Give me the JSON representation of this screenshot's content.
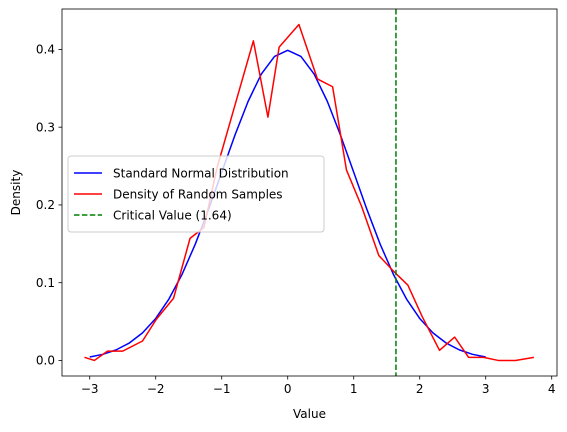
{
  "chart_data": {
    "type": "line",
    "title": "",
    "xlabel": "Value",
    "ylabel": "Density",
    "xlim": [
      -3.42,
      4.08
    ],
    "ylim": [
      -0.02,
      0.452
    ],
    "xticks": [
      -3,
      -2,
      -1,
      0,
      1,
      2,
      3,
      4
    ],
    "xtick_labels": [
      "−3",
      "−2",
      "−1",
      "0",
      "1",
      "2",
      "3",
      "4"
    ],
    "yticks": [
      0.0,
      0.1,
      0.2,
      0.3,
      0.4
    ],
    "ytick_labels": [
      "0.0",
      "0.1",
      "0.2",
      "0.3",
      "0.4"
    ],
    "grid": false,
    "legend_position": "center-left",
    "series": [
      {
        "name": "Standard Normal Distribution",
        "color": "#0000ff",
        "style": "solid",
        "x": [
          -3.0,
          -2.8,
          -2.6,
          -2.4,
          -2.2,
          -2.0,
          -1.8,
          -1.6,
          -1.4,
          -1.2,
          -1.0,
          -0.8,
          -0.6,
          -0.4,
          -0.2,
          0.0,
          0.2,
          0.4,
          0.6,
          0.8,
          1.0,
          1.2,
          1.4,
          1.6,
          1.8,
          2.0,
          2.2,
          2.4,
          2.6,
          2.8,
          3.0
        ],
        "y": [
          0.0044,
          0.0079,
          0.0136,
          0.0224,
          0.0355,
          0.054,
          0.079,
          0.1109,
          0.1497,
          0.1942,
          0.242,
          0.2897,
          0.3332,
          0.3683,
          0.391,
          0.3989,
          0.391,
          0.3683,
          0.3332,
          0.2897,
          0.242,
          0.1942,
          0.1497,
          0.1109,
          0.079,
          0.054,
          0.0355,
          0.0224,
          0.0136,
          0.0079,
          0.0044
        ]
      },
      {
        "name": "Density of Random Samples",
        "color": "#ff0000",
        "style": "solid",
        "x": [
          -3.08,
          -2.93,
          -2.73,
          -2.5,
          -2.2,
          -1.99,
          -1.73,
          -1.48,
          -1.27,
          -1.07,
          -0.76,
          -0.52,
          -0.3,
          -0.13,
          0.17,
          0.45,
          0.68,
          0.89,
          1.12,
          1.38,
          1.6,
          1.82,
          2.04,
          2.3,
          2.53,
          2.74,
          2.97,
          3.19,
          3.45,
          3.73
        ],
        "y": [
          0.004,
          0.0,
          0.012,
          0.012,
          0.025,
          0.053,
          0.08,
          0.157,
          0.171,
          0.248,
          0.34,
          0.411,
          0.313,
          0.403,
          0.432,
          0.362,
          0.352,
          0.245,
          0.198,
          0.135,
          0.115,
          0.097,
          0.056,
          0.013,
          0.03,
          0.004,
          0.004,
          0.0,
          0.0,
          0.004
        ]
      }
    ],
    "annotations": [
      {
        "type": "vline",
        "name": "Critical Value (1.64)",
        "x": 1.64,
        "color": "#008000",
        "style": "dashed"
      }
    ]
  }
}
